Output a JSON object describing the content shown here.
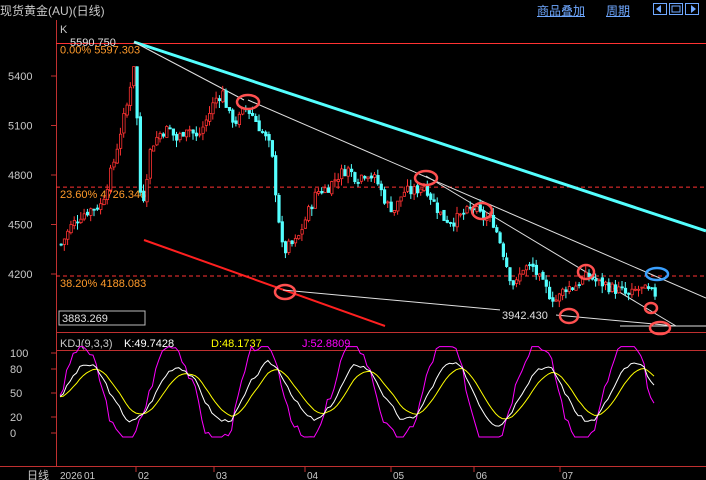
{
  "header": {
    "title": "现货黄金(AU)(日线)",
    "overlay_button": "商品叠加",
    "period_button": "周期"
  },
  "chart_data": [
    {
      "type": "candlestick",
      "panel_label": "K",
      "y_ticks": [
        "5400",
        "5100",
        "4800",
        "4500",
        "4200"
      ],
      "ylim": [
        3850,
        5650
      ],
      "x_ticks": [
        "2026",
        "01",
        "02",
        "03",
        "04",
        "05",
        "06",
        "07"
      ],
      "x_axis_label": "日线",
      "high_label": "5590.750",
      "low_label": "3942.430",
      "cursor_price": "3883.269",
      "fib_levels": [
        {
          "label": "0.00% 5597.303",
          "value": 5597.303
        },
        {
          "label": "23.60% 4726.348",
          "value": 4726.348
        },
        {
          "label": "38.20% 4188.083",
          "value": 4188.083
        }
      ],
      "colors": {
        "up": "#ff3232",
        "down": "#54ffff",
        "fib": "#ff3232",
        "fib_label": "#ff9a2a",
        "channel_upper": "#54ffff",
        "channel_lower": "#ff2020",
        "markers": "#ff5050",
        "marker_blue": "#3aa0ff"
      }
    },
    {
      "type": "line",
      "indicator": "KDJ(9,3,3)",
      "legend": {
        "k": "K:49.7428",
        "d": "D:48.1737",
        "j": "J:52.8809"
      },
      "y_ticks": [
        "100",
        "80",
        "50",
        "20",
        "0"
      ],
      "ylim": [
        -10,
        110
      ],
      "colors": {
        "k": "#ffffff",
        "d": "#ffff00",
        "j": "#ff00ff"
      }
    }
  ]
}
